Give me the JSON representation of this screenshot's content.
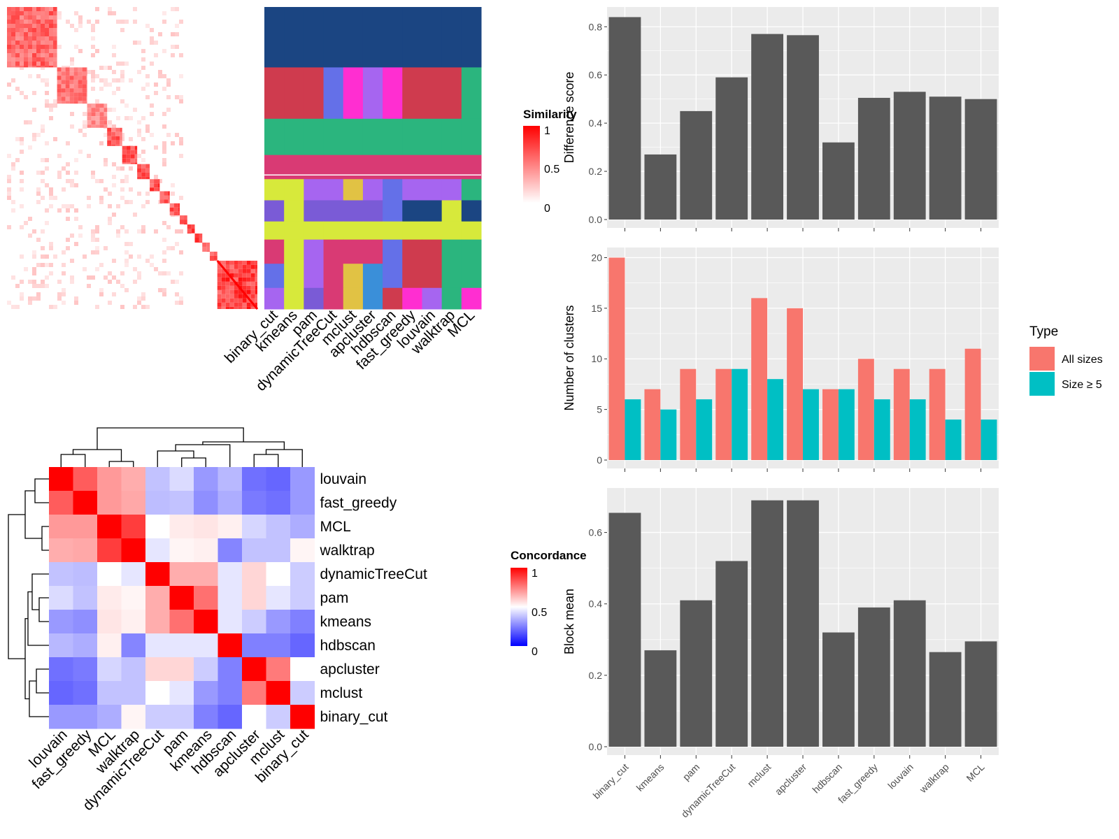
{
  "methods_axis": [
    "binary_cut",
    "kmeans",
    "pam",
    "dynamicTreeCut",
    "mclust",
    "apcluster",
    "hdbscan",
    "fast_greedy",
    "louvain",
    "walktrap",
    "MCL"
  ],
  "heatmap_order": [
    "louvain",
    "fast_greedy",
    "MCL",
    "walktrap",
    "dynamicTreeCut",
    "pam",
    "kmeans",
    "hdbscan",
    "apcluster",
    "mclust",
    "binary_cut"
  ],
  "similarity_legend": {
    "title": "Similarity",
    "ticks": [
      "1",
      "0.5",
      "0"
    ]
  },
  "concordance_legend": {
    "title": "Concordance",
    "ticks": [
      "1",
      "0.5",
      "0"
    ]
  },
  "type_legend": {
    "title": "Type",
    "items": [
      "All sizes",
      "Size ≥ 5"
    ],
    "colors": [
      "#F8766D",
      "#00BFC4"
    ]
  },
  "colors": {
    "bar": "#595959",
    "panel": "#EBEBEB",
    "grid": "#FFFFFF",
    "high": "#FF0000",
    "low": "#0000FF"
  },
  "chart_data": [
    {
      "type": "heatmap",
      "title": "",
      "description": "sample-by-sample similarity matrix with cluster assignment columns per method",
      "columns": [
        "binary_cut",
        "kmeans",
        "pam",
        "dynamicTreeCut",
        "mclust",
        "apcluster",
        "hdbscan",
        "fast_greedy",
        "louvain",
        "walktrap",
        "MCL"
      ],
      "legend": {
        "title": "Similarity",
        "range": [
          0,
          1
        ]
      }
    },
    {
      "type": "heatmap",
      "title": "",
      "rows": [
        "louvain",
        "fast_greedy",
        "MCL",
        "walktrap",
        "dynamicTreeCut",
        "pam",
        "kmeans",
        "hdbscan",
        "apcluster",
        "mclust",
        "binary_cut"
      ],
      "columns": [
        "louvain",
        "fast_greedy",
        "MCL",
        "walktrap",
        "dynamicTreeCut",
        "pam",
        "kmeans",
        "hdbscan",
        "apcluster",
        "mclust",
        "binary_cut"
      ],
      "values": [
        [
          1.0,
          0.82,
          0.7,
          0.66,
          0.38,
          0.43,
          0.3,
          0.36,
          0.22,
          0.2,
          0.3
        ],
        [
          0.82,
          1.0,
          0.7,
          0.67,
          0.37,
          0.38,
          0.28,
          0.34,
          0.24,
          0.22,
          0.3
        ],
        [
          0.7,
          0.7,
          1.0,
          0.88,
          0.5,
          0.54,
          0.55,
          0.53,
          0.42,
          0.38,
          0.34
        ],
        [
          0.66,
          0.67,
          0.88,
          1.0,
          0.45,
          0.52,
          0.53,
          0.26,
          0.38,
          0.38,
          0.52
        ],
        [
          0.38,
          0.37,
          0.5,
          0.45,
          1.0,
          0.66,
          0.66,
          0.45,
          0.58,
          0.5,
          0.4
        ],
        [
          0.43,
          0.38,
          0.54,
          0.52,
          0.66,
          1.0,
          0.78,
          0.45,
          0.58,
          0.45,
          0.4
        ],
        [
          0.3,
          0.28,
          0.55,
          0.53,
          0.66,
          0.78,
          1.0,
          0.45,
          0.4,
          0.3,
          0.25
        ],
        [
          0.36,
          0.34,
          0.53,
          0.26,
          0.45,
          0.45,
          0.45,
          1.0,
          0.25,
          0.25,
          0.2
        ],
        [
          0.22,
          0.24,
          0.42,
          0.38,
          0.58,
          0.58,
          0.4,
          0.25,
          1.0,
          0.76,
          0.5
        ],
        [
          0.2,
          0.22,
          0.38,
          0.38,
          0.5,
          0.45,
          0.3,
          0.25,
          0.76,
          1.0,
          0.4
        ],
        [
          0.3,
          0.3,
          0.34,
          0.52,
          0.4,
          0.4,
          0.25,
          0.2,
          0.5,
          0.4,
          1.0
        ]
      ],
      "legend": {
        "title": "Concordance",
        "range": [
          0,
          1
        ]
      }
    },
    {
      "type": "bar",
      "title": "",
      "categories": [
        "binary_cut",
        "kmeans",
        "pam",
        "dynamicTreeCut",
        "mclust",
        "apcluster",
        "hdbscan",
        "fast_greedy",
        "louvain",
        "walktrap",
        "MCL"
      ],
      "values": [
        0.84,
        0.27,
        0.45,
        0.59,
        0.77,
        0.765,
        0.32,
        0.505,
        0.53,
        0.51,
        0.5
      ],
      "xlabel": "",
      "ylabel": "Difference score",
      "ylim": [
        0,
        0.84
      ],
      "yticks": [
        0.0,
        0.2,
        0.4,
        0.6,
        0.8
      ]
    },
    {
      "type": "bar",
      "title": "",
      "categories": [
        "binary_cut",
        "kmeans",
        "pam",
        "dynamicTreeCut",
        "mclust",
        "apcluster",
        "hdbscan",
        "fast_greedy",
        "louvain",
        "walktrap",
        "MCL"
      ],
      "series": [
        {
          "name": "All sizes",
          "values": [
            20,
            7,
            9,
            9,
            16,
            15,
            7,
            10,
            9,
            9,
            11
          ]
        },
        {
          "name": "Size ≥ 5",
          "values": [
            6,
            5,
            6,
            9,
            8,
            7,
            7,
            6,
            6,
            4,
            4
          ]
        }
      ],
      "xlabel": "",
      "ylabel": "Number of clusters",
      "ylim": [
        0,
        20
      ],
      "yticks": [
        0,
        5,
        10,
        15,
        20
      ],
      "legend": {
        "title": "Type",
        "position": "right"
      }
    },
    {
      "type": "bar",
      "title": "",
      "categories": [
        "binary_cut",
        "kmeans",
        "pam",
        "dynamicTreeCut",
        "mclust",
        "apcluster",
        "hdbscan",
        "fast_greedy",
        "louvain",
        "walktrap",
        "MCL"
      ],
      "values": [
        0.655,
        0.27,
        0.41,
        0.52,
        0.69,
        0.69,
        0.32,
        0.39,
        0.41,
        0.265,
        0.295
      ],
      "xlabel": "",
      "ylabel": "Block mean",
      "ylim": [
        0,
        0.69
      ],
      "yticks": [
        0.0,
        0.2,
        0.4,
        0.6
      ]
    }
  ]
}
